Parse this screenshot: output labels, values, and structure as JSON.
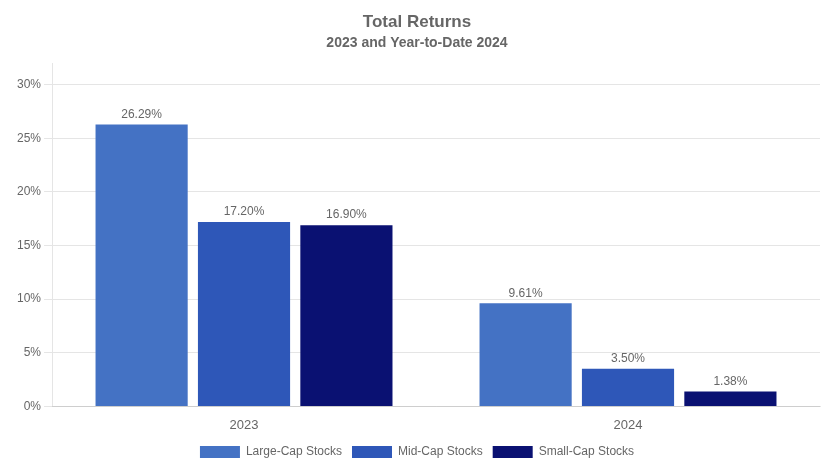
{
  "chart_data": {
    "type": "bar",
    "title": "Total Returns",
    "subtitle": "2023 and Year-to-Date 2024",
    "categories": [
      "2023",
      "2024"
    ],
    "series": [
      {
        "name": "Large-Cap Stocks",
        "color": "#4472C4",
        "values": [
          26.29,
          9.61
        ],
        "value_labels": [
          "26.29%",
          "9.61%"
        ]
      },
      {
        "name": "Mid-Cap Stocks",
        "color": "#2E57B8",
        "values": [
          17.2,
          3.5
        ],
        "value_labels": [
          "17.20%",
          "3.50%"
        ]
      },
      {
        "name": "Small-Cap Stocks",
        "color": "#0A1172",
        "values": [
          16.9,
          1.38
        ],
        "value_labels": [
          "16.90%",
          "1.38%"
        ]
      }
    ],
    "ylim": [
      0,
      32
    ],
    "yticks": [
      {
        "value": 0,
        "label": "0%"
      },
      {
        "value": 5,
        "label": "5%"
      },
      {
        "value": 10,
        "label": "10%"
      },
      {
        "value": 15,
        "label": "15%"
      },
      {
        "value": 20,
        "label": "20%"
      },
      {
        "value": 25,
        "label": "25%"
      },
      {
        "value": 30,
        "label": "30%"
      }
    ],
    "grid": true,
    "legend": "bottom",
    "data_labels": true
  }
}
